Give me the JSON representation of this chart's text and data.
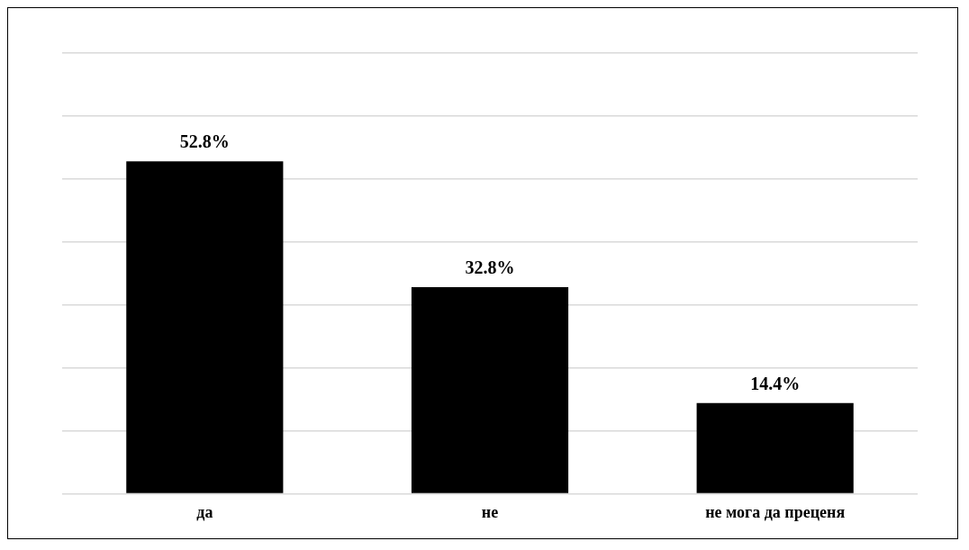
{
  "chart_data": {
    "type": "bar",
    "categories": [
      "да",
      "не",
      "не мога да преценя"
    ],
    "values": [
      52.8,
      32.8,
      14.4
    ],
    "value_labels": [
      "52.8%",
      "32.8%",
      "14.4%"
    ],
    "color": "#000000",
    "ylim": [
      0,
      70
    ],
    "yticks": [
      {
        "value": 0,
        "label": null
      },
      {
        "value": 10,
        "label": null
      },
      {
        "value": 20,
        "label": null
      },
      {
        "value": 30,
        "label": null
      },
      {
        "value": 40,
        "label": null
      },
      {
        "value": 50,
        "label": null
      },
      {
        "value": 60,
        "label": null
      },
      {
        "value": 70,
        "label": null
      }
    ],
    "grid": "y",
    "tick_labels": "x",
    "legend": false
  }
}
